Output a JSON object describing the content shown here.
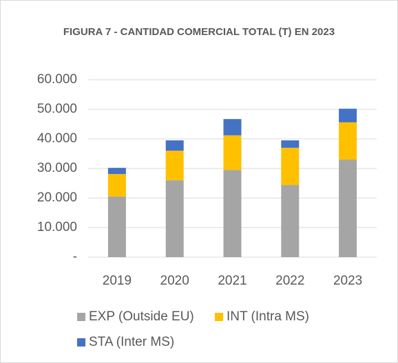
{
  "chart_data": {
    "type": "stacked-bar",
    "title": "FIGURA 7 - CANTIDAD COMERCIAL TOTAL (T) EN 2023",
    "categories": [
      "2019",
      "2020",
      "2021",
      "2022",
      "2023"
    ],
    "series": [
      {
        "name": "EXP (Outside EU)",
        "color": "#a5a5a5",
        "values": [
          20500,
          26000,
          29500,
          24400,
          33000
        ]
      },
      {
        "name": "INT (Intra MS)",
        "color": "#ffc000",
        "values": [
          7600,
          10000,
          11700,
          12600,
          12600
        ]
      },
      {
        "name": "STA (Inter MS)",
        "color": "#4472c4",
        "values": [
          2100,
          3500,
          5500,
          2500,
          4600
        ]
      }
    ],
    "ylim": [
      0,
      60000
    ],
    "yticks": [
      {
        "value": 0,
        "label": "-"
      },
      {
        "value": 10000,
        "label": "10.000"
      },
      {
        "value": 20000,
        "label": "20.000"
      },
      {
        "value": 30000,
        "label": "30.000"
      },
      {
        "value": 40000,
        "label": "40.000"
      },
      {
        "value": 50000,
        "label": "50.000"
      },
      {
        "value": 60000,
        "label": "60.000"
      }
    ],
    "grid": true,
    "legend": "bottom"
  }
}
